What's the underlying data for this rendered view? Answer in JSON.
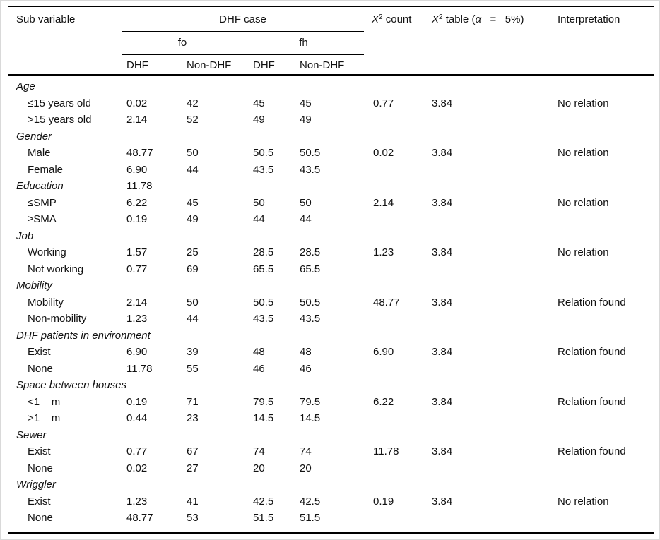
{
  "table": {
    "header": {
      "sub_variable": "Sub variable",
      "dhf_case": "DHF case",
      "fo": "fo",
      "fh": "fh",
      "sub_columns": [
        "DHF",
        "Non-DHF",
        "DHF",
        "Non-DHF"
      ],
      "x2_count": {
        "x": "X",
        "sup": "2",
        "rest": " count"
      },
      "x2_table": {
        "x": "X",
        "sup": "2",
        "mid": " table (",
        "alpha": "α",
        "rest": "   =   5%)"
      },
      "interpretation": "Interpretation"
    },
    "rows": [
      {
        "section": true,
        "label": "Age",
        "c1": "",
        "c2": "",
        "c3": "",
        "c4": "",
        "x2count": "",
        "x2table": "",
        "interp": ""
      },
      {
        "section": false,
        "label": "≤15 years old",
        "c1": "0.02",
        "c2": "42",
        "c3": "45",
        "c4": "45",
        "x2count": "0.77",
        "x2table": "3.84",
        "interp": "No relation"
      },
      {
        "section": false,
        "label": ">15 years old",
        "c1": "2.14",
        "c2": "52",
        "c3": "49",
        "c4": "49",
        "x2count": "",
        "x2table": "",
        "interp": ""
      },
      {
        "section": true,
        "label": "Gender",
        "c1": "",
        "c2": "",
        "c3": "",
        "c4": "",
        "x2count": "",
        "x2table": "",
        "interp": ""
      },
      {
        "section": false,
        "label": "Male",
        "c1": "48.77",
        "c2": "50",
        "c3": "50.5",
        "c4": "50.5",
        "x2count": "0.02",
        "x2table": "3.84",
        "interp": "No relation"
      },
      {
        "section": false,
        "label": "Female",
        "c1": "6.90",
        "c2": "44",
        "c3": "43.5",
        "c4": "43.5",
        "x2count": "",
        "x2table": "",
        "interp": ""
      },
      {
        "section": true,
        "label": "Education",
        "c1": "11.78",
        "c2": "",
        "c3": "",
        "c4": "",
        "x2count": "",
        "x2table": "",
        "interp": ""
      },
      {
        "section": false,
        "label": "≤SMP",
        "c1": "6.22",
        "c2": "45",
        "c3": "50",
        "c4": "50",
        "x2count": "2.14",
        "x2table": "3.84",
        "interp": "No relation"
      },
      {
        "section": false,
        "label": "≥SMA",
        "c1": "0.19",
        "c2": "49",
        "c3": "44",
        "c4": "44",
        "x2count": "",
        "x2table": "",
        "interp": ""
      },
      {
        "section": true,
        "label": "Job",
        "c1": "",
        "c2": "",
        "c3": "",
        "c4": "",
        "x2count": "",
        "x2table": "",
        "interp": ""
      },
      {
        "section": false,
        "label": "Working",
        "c1": "1.57",
        "c2": "25",
        "c3": "28.5",
        "c4": "28.5",
        "x2count": "1.23",
        "x2table": "3.84",
        "interp": "No relation"
      },
      {
        "section": false,
        "label": "Not working",
        "c1": "0.77",
        "c2": "69",
        "c3": "65.5",
        "c4": "65.5",
        "x2count": "",
        "x2table": "",
        "interp": ""
      },
      {
        "section": true,
        "label": "Mobility",
        "c1": "",
        "c2": "",
        "c3": "",
        "c4": "",
        "x2count": "",
        "x2table": "",
        "interp": ""
      },
      {
        "section": false,
        "label": "Mobility",
        "c1": "2.14",
        "c2": "50",
        "c3": "50.5",
        "c4": "50.5",
        "x2count": "48.77",
        "x2table": "3.84",
        "interp": "Relation found"
      },
      {
        "section": false,
        "label": "Non-mobility",
        "c1": "1.23",
        "c2": "44",
        "c3": "43.5",
        "c4": "43.5",
        "x2count": "",
        "x2table": "",
        "interp": ""
      },
      {
        "section": true,
        "label": "DHF patients in environment",
        "c1": "",
        "c2": "",
        "c3": "",
        "c4": "",
        "x2count": "",
        "x2table": "",
        "interp": ""
      },
      {
        "section": false,
        "label": "Exist",
        "c1": "6.90",
        "c2": "39",
        "c3": "48",
        "c4": "48",
        "x2count": "6.90",
        "x2table": "3.84",
        "interp": "Relation found"
      },
      {
        "section": false,
        "label": "None",
        "c1": "11.78",
        "c2": "55",
        "c3": "46",
        "c4": "46",
        "x2count": "",
        "x2table": "",
        "interp": ""
      },
      {
        "section": true,
        "label": "Space between houses",
        "c1": "",
        "c2": "",
        "c3": "",
        "c4": "",
        "x2count": "",
        "x2table": "",
        "interp": ""
      },
      {
        "section": false,
        "label": "<1    m",
        "c1": "0.19",
        "c2": "71",
        "c3": "79.5",
        "c4": "79.5",
        "x2count": "6.22",
        "x2table": "3.84",
        "interp": "Relation found"
      },
      {
        "section": false,
        "label": ">1    m",
        "c1": "0.44",
        "c2": "23",
        "c3": "14.5",
        "c4": "14.5",
        "x2count": "",
        "x2table": "",
        "interp": ""
      },
      {
        "section": true,
        "label": "Sewer",
        "c1": "",
        "c2": "",
        "c3": "",
        "c4": "",
        "x2count": "",
        "x2table": "",
        "interp": ""
      },
      {
        "section": false,
        "label": "Exist",
        "c1": "0.77",
        "c2": "67",
        "c3": "74",
        "c4": "74",
        "x2count": "11.78",
        "x2table": "3.84",
        "interp": "Relation found"
      },
      {
        "section": false,
        "label": "None",
        "c1": "0.02",
        "c2": "27",
        "c3": "20",
        "c4": "20",
        "x2count": "",
        "x2table": "",
        "interp": ""
      },
      {
        "section": true,
        "label": "Wriggler",
        "c1": "",
        "c2": "",
        "c3": "",
        "c4": "",
        "x2count": "",
        "x2table": "",
        "interp": ""
      },
      {
        "section": false,
        "label": "Exist",
        "c1": "1.23",
        "c2": "41",
        "c3": "42.5",
        "c4": "42.5",
        "x2count": "0.19",
        "x2table": "3.84",
        "interp": "No relation"
      },
      {
        "section": false,
        "label": "None",
        "c1": "48.77",
        "c2": "53",
        "c3": "51.5",
        "c4": "51.5",
        "x2count": "",
        "x2table": "",
        "interp": ""
      }
    ]
  }
}
